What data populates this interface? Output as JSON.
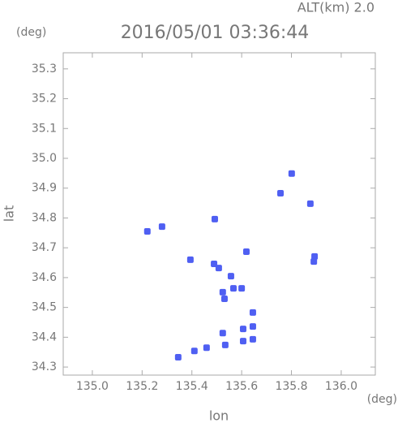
{
  "chart_data": {
    "type": "scatter",
    "title": "2016/05/01 03:36:44",
    "subtitle": "ALT(km) 2.0",
    "y_unit": "(deg)",
    "x_unit": "(deg)",
    "x_label": "lon",
    "y_label": "lat",
    "color": "#4f5ff2",
    "x": [
      135.221,
      135.28,
      135.801,
      135.756,
      135.876,
      135.492,
      135.893,
      135.89,
      135.619,
      135.489,
      135.508,
      135.394,
      135.557,
      135.524,
      135.567,
      135.6,
      135.531,
      135.645,
      135.606,
      135.645,
      135.606,
      135.534,
      135.459,
      135.41,
      135.345,
      135.524,
      135.645
    ],
    "values": [
      34.755,
      34.771,
      34.949,
      34.883,
      34.848,
      34.796,
      34.671,
      34.654,
      34.687,
      34.646,
      34.632,
      34.66,
      34.605,
      34.551,
      34.564,
      34.564,
      34.529,
      34.483,
      34.428,
      34.436,
      34.387,
      34.374,
      34.365,
      34.354,
      34.333,
      34.414,
      34.393
    ],
    "xlim": [
      134.883,
      136.137
    ],
    "ylim": [
      34.273,
      35.354
    ],
    "xticks": [
      {
        "value": 135,
        "label": "135.0"
      },
      135.2,
      135.4,
      135.6,
      135.8,
      {
        "value": 136,
        "label": "136.0"
      }
    ],
    "yticks": [
      34.3,
      34.4,
      34.5,
      34.6,
      34.7,
      34.8,
      34.9,
      {
        "value": 35,
        "label": "35.0"
      },
      35.1,
      35.2,
      35.3
    ]
  }
}
